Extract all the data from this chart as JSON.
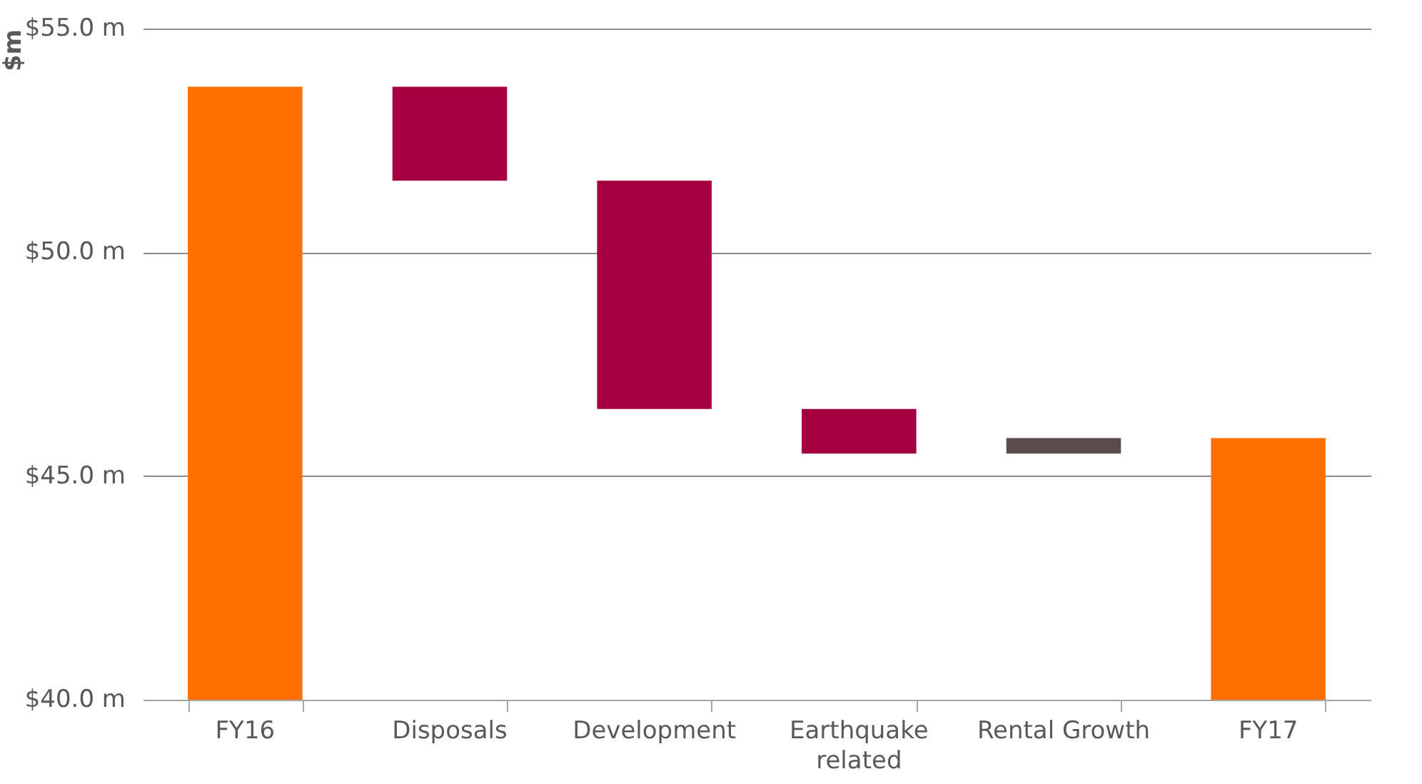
{
  "chart_data": {
    "type": "bar",
    "ylabel": "$m",
    "categories": [
      "FY16",
      "Disposals",
      "Development",
      "Earthquake related",
      "Rental Growth",
      "FY17"
    ],
    "values": [
      53.7,
      -2.1,
      -5.1,
      -1.0,
      0.35,
      45.85
    ],
    "base": [
      null,
      53.7,
      51.6,
      46.5,
      45.5,
      null
    ],
    "colors": [
      "#ff7000",
      "#a50040",
      "#a50040",
      "#a50040",
      "#5b4b4b",
      "#ff7000"
    ],
    "ylim": [
      40,
      55
    ],
    "yticks": [
      {
        "value": 40,
        "label": "$40.0 m"
      },
      {
        "value": 45,
        "label": "$45.0 m"
      },
      {
        "value": 50,
        "label": "$50.0 m"
      },
      {
        "value": 55,
        "label": "$55.0 m"
      }
    ],
    "grid": "y"
  }
}
